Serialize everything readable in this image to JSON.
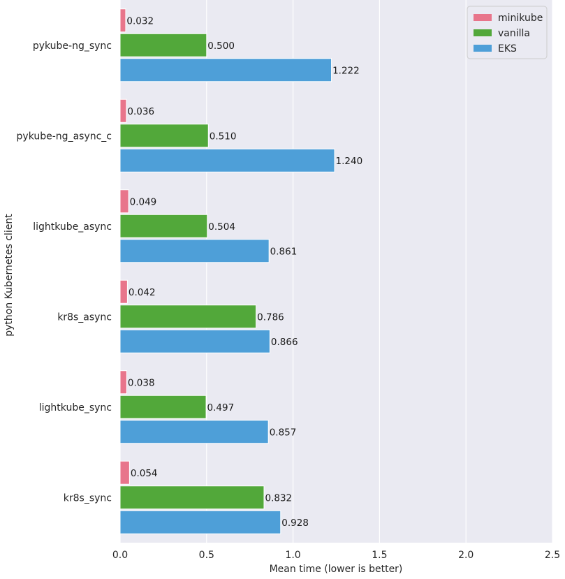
{
  "chart_data": {
    "type": "bar",
    "orientation": "horizontal",
    "title": "",
    "xlabel": "Mean time (lower is better)",
    "ylabel": "python Kubernetes client",
    "xlim": [
      0,
      2.5
    ],
    "xticks": [
      "0.0",
      "0.5",
      "1.0",
      "1.5",
      "2.0",
      "2.5"
    ],
    "grid": true,
    "legend_position": "top-right",
    "categories": [
      "pykube-ng_sync",
      "pykube-ng_async_c",
      "lightkube_async",
      "kr8s_async",
      "lightkube_sync",
      "kr8s_sync"
    ],
    "series": [
      {
        "name": "minikube",
        "color": "#e8758b",
        "values": [
          0.032,
          0.036,
          0.049,
          0.042,
          0.038,
          0.054
        ],
        "labels": [
          "0.032",
          "0.036",
          "0.049",
          "0.042",
          "0.038",
          "0.054"
        ]
      },
      {
        "name": "vanilla",
        "color": "#52a83a",
        "values": [
          0.5,
          0.51,
          0.504,
          0.786,
          0.497,
          0.832
        ],
        "labels": [
          "0.500",
          "0.510",
          "0.504",
          "0.786",
          "0.497",
          "0.832"
        ]
      },
      {
        "name": "EKS",
        "color": "#4e9fd8",
        "values": [
          1.222,
          1.24,
          0.861,
          0.866,
          0.857,
          0.928
        ],
        "labels": [
          "1.222",
          "1.240",
          "0.861",
          "0.866",
          "0.857",
          "0.928"
        ]
      }
    ]
  }
}
